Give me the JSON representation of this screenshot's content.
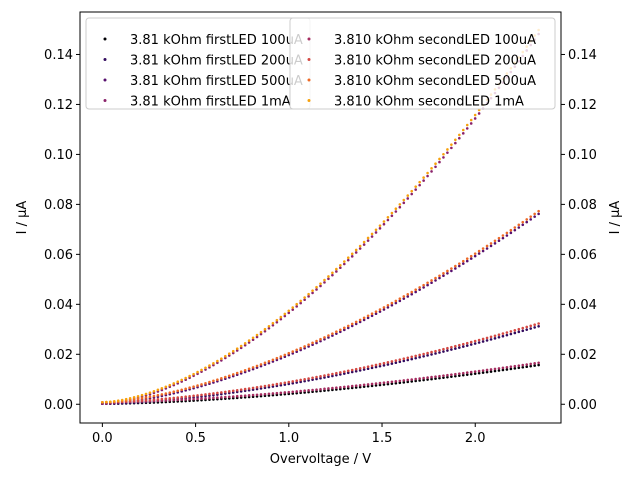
{
  "chart_data": {
    "type": "scatter",
    "xlabel": "Overvoltage / V",
    "ylabel_left": "I / µA",
    "ylabel_right": "I / µA",
    "xlim": [
      -0.12,
      2.46
    ],
    "ylim": [
      -0.0075,
      0.157
    ],
    "xticks": [
      0.0,
      0.5,
      1.0,
      1.5,
      2.0
    ],
    "xtick_labels": [
      "0.0",
      "0.5",
      "1.0",
      "1.5",
      "2.0"
    ],
    "yticks": [
      0.0,
      0.02,
      0.04,
      0.06,
      0.08,
      0.1,
      0.12,
      0.14
    ],
    "ytick_labels": [
      "0.00",
      "0.02",
      "0.04",
      "0.06",
      "0.08",
      "0.10",
      "0.12",
      "0.14"
    ],
    "grid": false,
    "legend_position": "top",
    "x_range": [
      0.0,
      2.34
    ],
    "series": [
      {
        "name": "3.81 kOhm firstLED 100uA",
        "color": "#000004",
        "group": "first",
        "end_value": 0.0155,
        "exponent": 1.6
      },
      {
        "name": "3.81 kOhm firstLED 200uA",
        "color": "#320a5e",
        "group": "first",
        "end_value": 0.031,
        "exponent": 1.6
      },
      {
        "name": "3.81 kOhm firstLED 500uA",
        "color": "#57106e",
        "group": "first",
        "end_value": 0.076,
        "exponent": 1.6
      },
      {
        "name": "3.81 kOhm firstLED 1mA",
        "color": "#8a226a",
        "group": "first",
        "end_value": 0.148,
        "exponent": 1.65
      },
      {
        "name": "3.810 kOhm secondLED 100uA",
        "color": "#a52c60",
        "group": "second",
        "end_value": 0.0158,
        "exponent": 1.6
      },
      {
        "name": "3.810 kOhm secondLED 200uA",
        "color": "#d44842",
        "group": "second",
        "end_value": 0.0315,
        "exponent": 1.6
      },
      {
        "name": "3.810 kOhm secondLED 500uA",
        "color": "#ed6925",
        "group": "second",
        "end_value": 0.0765,
        "exponent": 1.6
      },
      {
        "name": "3.810 kOhm secondLED 1mA",
        "color": "#f7a10c",
        "group": "second",
        "end_value": 0.149,
        "exponent": 1.65
      }
    ]
  }
}
